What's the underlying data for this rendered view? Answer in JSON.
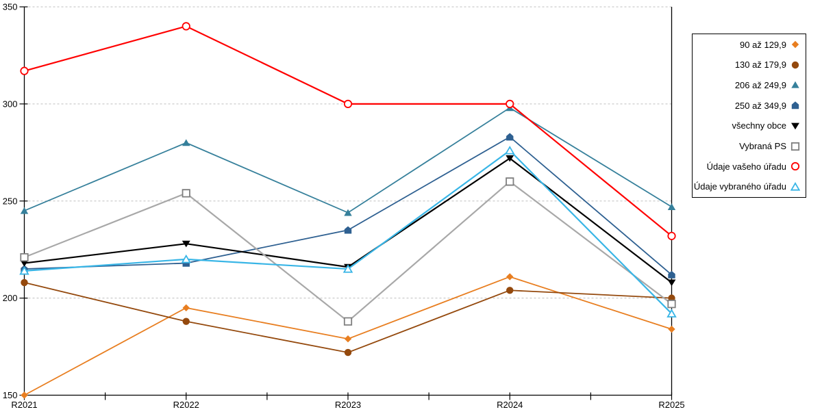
{
  "chart_data": {
    "type": "line",
    "title": "",
    "xlabel": "",
    "ylabel": "",
    "categories": [
      "R2021",
      "R2022",
      "R2023",
      "R2024",
      "R2025"
    ],
    "yticks": [
      150,
      200,
      250,
      300,
      350
    ],
    "ylim": [
      150,
      350
    ],
    "grid": "horizontal-dashed",
    "gridline_color": "#BFBFBF",
    "axis_color": "#000000",
    "legend_position": "right",
    "series": [
      {
        "name": "90 až 129,9",
        "marker": "diamond",
        "open": false,
        "color": "#E87E20",
        "line_color": "#E87E20",
        "values": [
          150,
          195,
          179,
          211,
          184
        ]
      },
      {
        "name": "130 až 179,9",
        "marker": "circle",
        "open": false,
        "color": "#94490D",
        "line_color": "#94490D",
        "values": [
          208,
          188,
          172,
          204,
          200
        ]
      },
      {
        "name": "206 až 249,9",
        "marker": "triangle-up",
        "open": false,
        "color": "#36809B",
        "line_color": "#36809B",
        "values": [
          245,
          280,
          244,
          298,
          247
        ]
      },
      {
        "name": "250 až 349,9",
        "marker": "pentagon",
        "open": false,
        "color": "#2E6091",
        "line_color": "#2E6091",
        "values": [
          215,
          218,
          235,
          283,
          212
        ]
      },
      {
        "name": "všechny obce",
        "marker": "triangle-down",
        "open": false,
        "color": "#000000",
        "line_color": "#000000",
        "values": [
          218,
          228,
          216,
          272,
          208
        ]
      },
      {
        "name": "Vybraná PS",
        "marker": "square",
        "open": true,
        "color": "#7F7F7F",
        "line_color": "#A8A8A8",
        "values": [
          221,
          254,
          188,
          260,
          197
        ]
      },
      {
        "name": "Údaje vašeho úřadu",
        "marker": "circle",
        "open": true,
        "color": "#FF0000",
        "line_color": "#FF0000",
        "values": [
          317,
          340,
          300,
          300,
          232
        ]
      },
      {
        "name": "Údaje vybraného úřadu",
        "marker": "triangle-up",
        "open": true,
        "color": "#38B5E6",
        "line_color": "#38B5E6",
        "values": [
          214,
          220,
          215,
          276,
          192
        ]
      }
    ]
  }
}
